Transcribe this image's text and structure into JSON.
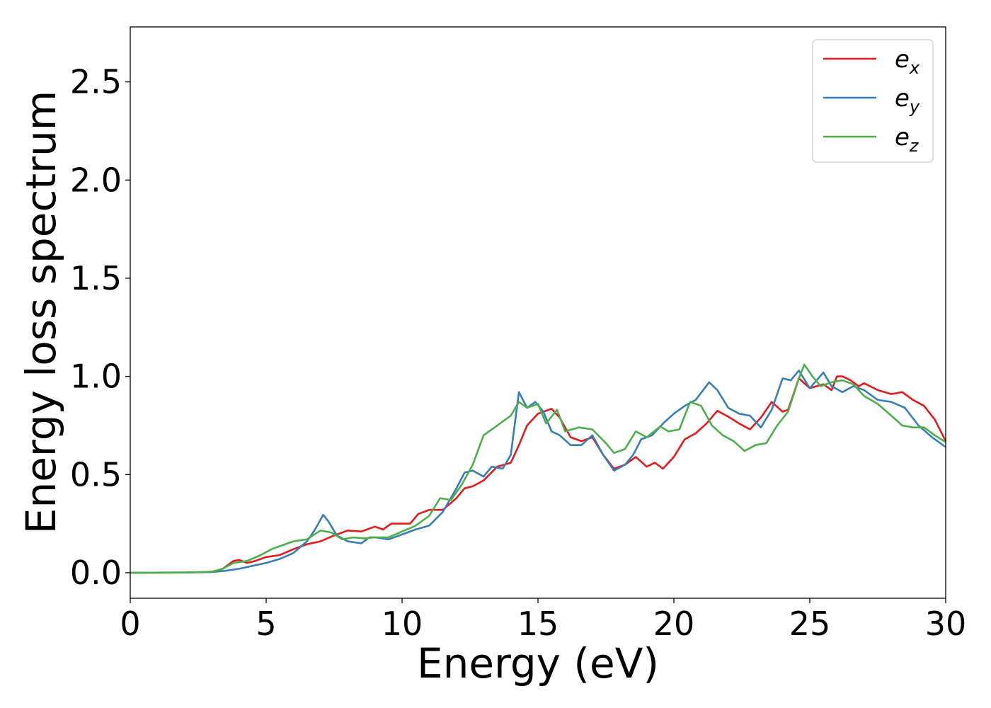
{
  "chart_data": {
    "type": "line",
    "title": "",
    "xlabel": "Energy (eV)",
    "ylabel": "Energy loss spectrum",
    "xlim": [
      0,
      30
    ],
    "ylim": [
      -0.13,
      2.78
    ],
    "xticks": [
      0,
      5,
      10,
      15,
      20,
      25,
      30
    ],
    "xtick_labels": [
      "0",
      "5",
      "10",
      "15",
      "20",
      "25",
      "30"
    ],
    "yticks": [
      0.0,
      0.5,
      1.0,
      1.5,
      2.0,
      2.5
    ],
    "ytick_labels": [
      "0.0",
      "0.5",
      "1.0",
      "1.5",
      "2.0",
      "2.5"
    ],
    "grid": false,
    "legend_position": "top-right",
    "series": [
      {
        "name": "e_x",
        "label_main": "e",
        "label_sub": "x",
        "color": "#e41a1c",
        "points": [
          [
            0,
            0
          ],
          [
            2,
            0.001
          ],
          [
            3,
            0.005
          ],
          [
            3.4,
            0.02
          ],
          [
            3.8,
            0.06
          ],
          [
            4.0,
            0.065
          ],
          [
            4.3,
            0.05
          ],
          [
            4.6,
            0.06
          ],
          [
            5,
            0.08
          ],
          [
            5.5,
            0.09
          ],
          [
            6,
            0.12
          ],
          [
            6.5,
            0.145
          ],
          [
            7,
            0.16
          ],
          [
            7.5,
            0.19
          ],
          [
            8,
            0.215
          ],
          [
            8.5,
            0.21
          ],
          [
            9,
            0.235
          ],
          [
            9.3,
            0.22
          ],
          [
            9.6,
            0.25
          ],
          [
            10,
            0.25
          ],
          [
            10.3,
            0.25
          ],
          [
            10.6,
            0.3
          ],
          [
            11,
            0.32
          ],
          [
            11.5,
            0.32
          ],
          [
            12,
            0.38
          ],
          [
            12.3,
            0.43
          ],
          [
            12.6,
            0.44
          ],
          [
            13,
            0.47
          ],
          [
            13.5,
            0.54
          ],
          [
            14,
            0.56
          ],
          [
            14.3,
            0.65
          ],
          [
            14.6,
            0.75
          ],
          [
            15,
            0.81
          ],
          [
            15.5,
            0.835
          ],
          [
            15.8,
            0.79
          ],
          [
            16.2,
            0.69
          ],
          [
            16.6,
            0.67
          ],
          [
            17,
            0.69
          ],
          [
            17.4,
            0.6
          ],
          [
            17.8,
            0.53
          ],
          [
            18.2,
            0.55
          ],
          [
            18.6,
            0.59
          ],
          [
            19,
            0.54
          ],
          [
            19.3,
            0.56
          ],
          [
            19.6,
            0.53
          ],
          [
            20,
            0.59
          ],
          [
            20.4,
            0.68
          ],
          [
            20.8,
            0.71
          ],
          [
            21.2,
            0.76
          ],
          [
            21.6,
            0.825
          ],
          [
            22,
            0.795
          ],
          [
            22.4,
            0.76
          ],
          [
            22.8,
            0.73
          ],
          [
            23.2,
            0.79
          ],
          [
            23.6,
            0.87
          ],
          [
            24,
            0.82
          ],
          [
            24.2,
            0.83
          ],
          [
            24.6,
            0.99
          ],
          [
            25,
            0.94
          ],
          [
            25.5,
            0.96
          ],
          [
            25.8,
            0.93
          ],
          [
            26,
            1.0
          ],
          [
            26.2,
            1.0
          ],
          [
            26.5,
            0.98
          ],
          [
            26.8,
            0.95
          ],
          [
            27,
            0.965
          ],
          [
            27.5,
            0.93
          ],
          [
            28,
            0.91
          ],
          [
            28.4,
            0.92
          ],
          [
            28.8,
            0.88
          ],
          [
            29.2,
            0.85
          ],
          [
            29.6,
            0.78
          ],
          [
            30,
            0.67
          ]
        ]
      },
      {
        "name": "e_y",
        "label_main": "e",
        "label_sub": "y",
        "color": "#377eb8",
        "points": [
          [
            0,
            0
          ],
          [
            2,
            0.001
          ],
          [
            3,
            0.003
          ],
          [
            3.5,
            0.01
          ],
          [
            4,
            0.02
          ],
          [
            4.5,
            0.035
          ],
          [
            5,
            0.05
          ],
          [
            5.5,
            0.07
          ],
          [
            6,
            0.1
          ],
          [
            6.5,
            0.16
          ],
          [
            6.8,
            0.22
          ],
          [
            7.1,
            0.295
          ],
          [
            7.3,
            0.26
          ],
          [
            7.6,
            0.19
          ],
          [
            8,
            0.16
          ],
          [
            8.5,
            0.15
          ],
          [
            8.8,
            0.18
          ],
          [
            9,
            0.18
          ],
          [
            9.5,
            0.17
          ],
          [
            10,
            0.195
          ],
          [
            10.5,
            0.22
          ],
          [
            11,
            0.24
          ],
          [
            11.5,
            0.31
          ],
          [
            12,
            0.43
          ],
          [
            12.3,
            0.51
          ],
          [
            12.6,
            0.52
          ],
          [
            13,
            0.49
          ],
          [
            13.3,
            0.54
          ],
          [
            13.7,
            0.53
          ],
          [
            14,
            0.6
          ],
          [
            14.3,
            0.92
          ],
          [
            14.6,
            0.84
          ],
          [
            14.9,
            0.87
          ],
          [
            15.2,
            0.82
          ],
          [
            15.5,
            0.72
          ],
          [
            15.8,
            0.7
          ],
          [
            16.2,
            0.65
          ],
          [
            16.6,
            0.65
          ],
          [
            17,
            0.7
          ],
          [
            17.4,
            0.6
          ],
          [
            17.8,
            0.52
          ],
          [
            18.2,
            0.55
          ],
          [
            18.5,
            0.6
          ],
          [
            18.8,
            0.68
          ],
          [
            19.2,
            0.7
          ],
          [
            19.6,
            0.76
          ],
          [
            20,
            0.81
          ],
          [
            20.4,
            0.85
          ],
          [
            20.8,
            0.88
          ],
          [
            21.3,
            0.97
          ],
          [
            21.6,
            0.93
          ],
          [
            22,
            0.84
          ],
          [
            22.4,
            0.81
          ],
          [
            22.8,
            0.8
          ],
          [
            23.2,
            0.74
          ],
          [
            23.6,
            0.83
          ],
          [
            24,
            0.99
          ],
          [
            24.3,
            0.98
          ],
          [
            24.6,
            1.03
          ],
          [
            25,
            0.94
          ],
          [
            25.5,
            1.02
          ],
          [
            25.8,
            0.95
          ],
          [
            26.2,
            0.92
          ],
          [
            26.6,
            0.95
          ],
          [
            27,
            0.93
          ],
          [
            27.5,
            0.88
          ],
          [
            28,
            0.87
          ],
          [
            28.5,
            0.84
          ],
          [
            29,
            0.75
          ],
          [
            29.5,
            0.69
          ],
          [
            30,
            0.64
          ]
        ]
      },
      {
        "name": "e_z",
        "label_main": "e",
        "label_sub": "z",
        "color": "#4daf4a",
        "points": [
          [
            0,
            0
          ],
          [
            2,
            0.001
          ],
          [
            3,
            0.005
          ],
          [
            3.4,
            0.02
          ],
          [
            3.8,
            0.05
          ],
          [
            4.3,
            0.06
          ],
          [
            4.8,
            0.09
          ],
          [
            5.2,
            0.12
          ],
          [
            5.6,
            0.14
          ],
          [
            6,
            0.16
          ],
          [
            6.5,
            0.17
          ],
          [
            7,
            0.215
          ],
          [
            7.4,
            0.205
          ],
          [
            7.8,
            0.17
          ],
          [
            8.2,
            0.18
          ],
          [
            8.6,
            0.175
          ],
          [
            9,
            0.18
          ],
          [
            9.5,
            0.18
          ],
          [
            10,
            0.21
          ],
          [
            10.5,
            0.24
          ],
          [
            11,
            0.29
          ],
          [
            11.4,
            0.38
          ],
          [
            11.8,
            0.37
          ],
          [
            12.2,
            0.45
          ],
          [
            12.6,
            0.55
          ],
          [
            13,
            0.7
          ],
          [
            13.5,
            0.75
          ],
          [
            14,
            0.8
          ],
          [
            14.3,
            0.87
          ],
          [
            14.6,
            0.84
          ],
          [
            15,
            0.86
          ],
          [
            15.3,
            0.76
          ],
          [
            15.7,
            0.83
          ],
          [
            16,
            0.72
          ],
          [
            16.5,
            0.74
          ],
          [
            17,
            0.73
          ],
          [
            17.5,
            0.66
          ],
          [
            17.8,
            0.61
          ],
          [
            18.2,
            0.63
          ],
          [
            18.6,
            0.72
          ],
          [
            19,
            0.69
          ],
          [
            19.5,
            0.745
          ],
          [
            19.8,
            0.72
          ],
          [
            20.2,
            0.73
          ],
          [
            20.6,
            0.87
          ],
          [
            21,
            0.85
          ],
          [
            21.4,
            0.75
          ],
          [
            21.8,
            0.7
          ],
          [
            22.2,
            0.67
          ],
          [
            22.6,
            0.62
          ],
          [
            23,
            0.65
          ],
          [
            23.4,
            0.66
          ],
          [
            23.8,
            0.75
          ],
          [
            24.2,
            0.82
          ],
          [
            24.6,
            0.99
          ],
          [
            24.8,
            1.06
          ],
          [
            25.1,
            1.0
          ],
          [
            25.4,
            0.95
          ],
          [
            25.8,
            0.97
          ],
          [
            26.2,
            0.98
          ],
          [
            26.6,
            0.96
          ],
          [
            27,
            0.9
          ],
          [
            27.5,
            0.86
          ],
          [
            28,
            0.8
          ],
          [
            28.4,
            0.75
          ],
          [
            28.8,
            0.74
          ],
          [
            29.2,
            0.74
          ],
          [
            29.6,
            0.7
          ],
          [
            30,
            0.665
          ]
        ]
      }
    ]
  }
}
